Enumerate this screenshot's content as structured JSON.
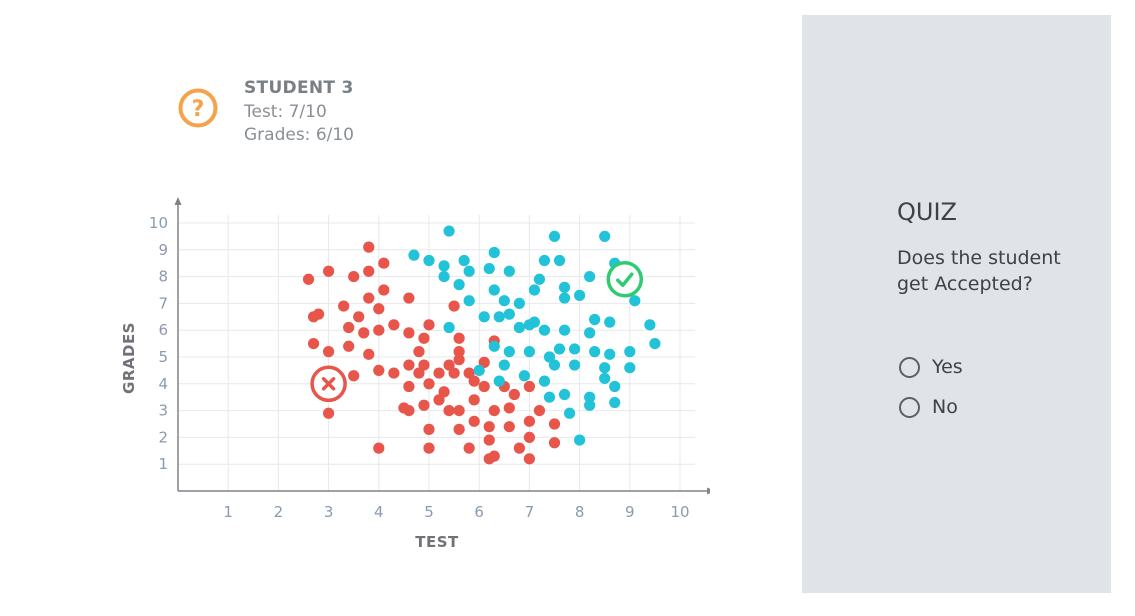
{
  "student": {
    "title": "STUDENT 3",
    "test": "Test: 7/10",
    "grades": "Grades: 6/10",
    "icon": "question-mark-icon"
  },
  "quiz": {
    "title": "QUIZ",
    "question": "Does the student get Accepted?",
    "options": [
      {
        "label": "Yes",
        "selected": false
      },
      {
        "label": "No",
        "selected": false
      }
    ]
  },
  "colors": {
    "rejected": "#e8554a",
    "accepted": "#22c3d9",
    "student_icon": "#f5a24a",
    "check": "#2ecc71",
    "panel_bg": "#e0e4e8"
  },
  "chart_data": {
    "type": "scatter",
    "xlabel": "TEST",
    "ylabel": "GRADES",
    "xlim": [
      0,
      10.3
    ],
    "ylim": [
      0,
      10.3
    ],
    "xticks": [
      1,
      2,
      3,
      4,
      5,
      6,
      7,
      8,
      9,
      10
    ],
    "yticks": [
      1,
      2,
      3,
      4,
      5,
      6,
      7,
      8,
      9,
      10
    ],
    "grid": true,
    "series": [
      {
        "color": "#e8554a",
        "points": [
          [
            3.8,
            9.1
          ],
          [
            2.6,
            7.9
          ],
          [
            3.0,
            8.2
          ],
          [
            3.5,
            8.0
          ],
          [
            3.8,
            8.2
          ],
          [
            4.1,
            8.5
          ],
          [
            4.1,
            7.5
          ],
          [
            3.8,
            7.2
          ],
          [
            4.6,
            7.2
          ],
          [
            2.8,
            6.6
          ],
          [
            2.7,
            6.5
          ],
          [
            3.3,
            6.9
          ],
          [
            3.6,
            6.5
          ],
          [
            4.0,
            6.8
          ],
          [
            3.4,
            6.1
          ],
          [
            3.7,
            5.9
          ],
          [
            4.0,
            6.0
          ],
          [
            4.3,
            6.2
          ],
          [
            4.6,
            5.9
          ],
          [
            5.0,
            6.2
          ],
          [
            5.5,
            6.9
          ],
          [
            4.9,
            5.7
          ],
          [
            5.6,
            5.7
          ],
          [
            2.7,
            5.5
          ],
          [
            3.0,
            5.2
          ],
          [
            3.4,
            5.4
          ],
          [
            3.8,
            5.1
          ],
          [
            4.0,
            4.5
          ],
          [
            4.3,
            4.4
          ],
          [
            4.6,
            4.7
          ],
          [
            4.8,
            5.2
          ],
          [
            4.9,
            4.7
          ],
          [
            5.2,
            4.4
          ],
          [
            5.4,
            4.7
          ],
          [
            5.6,
            4.9
          ],
          [
            5.6,
            5.2
          ],
          [
            5.8,
            4.4
          ],
          [
            6.1,
            4.8
          ],
          [
            6.3,
            5.6
          ],
          [
            5.9,
            4.1
          ],
          [
            6.1,
            3.9
          ],
          [
            6.5,
            3.9
          ],
          [
            7.0,
            3.9
          ],
          [
            5.5,
            4.4
          ],
          [
            5.3,
            3.7
          ],
          [
            4.8,
            4.4
          ],
          [
            5.0,
            4.0
          ],
          [
            4.6,
            3.9
          ],
          [
            4.5,
            3.1
          ],
          [
            4.6,
            3.0
          ],
          [
            4.9,
            3.2
          ],
          [
            5.2,
            3.4
          ],
          [
            5.4,
            3.0
          ],
          [
            5.6,
            3.0
          ],
          [
            5.9,
            3.4
          ],
          [
            6.3,
            3.0
          ],
          [
            6.6,
            3.1
          ],
          [
            6.7,
            3.6
          ],
          [
            7.2,
            3.0
          ],
          [
            5.9,
            2.6
          ],
          [
            6.2,
            2.4
          ],
          [
            6.6,
            2.4
          ],
          [
            7.0,
            2.6
          ],
          [
            7.5,
            2.5
          ],
          [
            7.0,
            2.0
          ],
          [
            7.5,
            1.8
          ],
          [
            5.0,
            2.3
          ],
          [
            5.6,
            2.3
          ],
          [
            6.2,
            1.9
          ],
          [
            5.8,
            1.6
          ],
          [
            6.3,
            1.3
          ],
          [
            6.8,
            1.6
          ],
          [
            7.0,
            1.2
          ],
          [
            6.2,
            1.2
          ],
          [
            5.0,
            1.6
          ],
          [
            4.0,
            1.6
          ],
          [
            3.0,
            2.9
          ],
          [
            3.5,
            4.3
          ],
          [
            2.8,
            4.2
          ]
        ]
      },
      {
        "color": "#22c3d9",
        "points": [
          [
            5.4,
            9.7
          ],
          [
            4.7,
            8.8
          ],
          [
            5.0,
            8.6
          ],
          [
            5.3,
            8.4
          ],
          [
            5.7,
            8.6
          ],
          [
            6.3,
            8.9
          ],
          [
            6.2,
            8.3
          ],
          [
            6.6,
            8.2
          ],
          [
            7.3,
            8.6
          ],
          [
            7.6,
            8.6
          ],
          [
            7.5,
            9.5
          ],
          [
            8.5,
            9.5
          ],
          [
            5.3,
            8.0
          ],
          [
            5.6,
            7.7
          ],
          [
            5.8,
            8.2
          ],
          [
            6.3,
            7.5
          ],
          [
            6.5,
            7.1
          ],
          [
            6.8,
            7.0
          ],
          [
            7.1,
            7.5
          ],
          [
            7.2,
            7.9
          ],
          [
            7.7,
            7.6
          ],
          [
            8.2,
            8.0
          ],
          [
            8.7,
            8.5
          ],
          [
            5.8,
            7.1
          ],
          [
            6.1,
            6.5
          ],
          [
            6.4,
            6.5
          ],
          [
            6.6,
            6.6
          ],
          [
            7.1,
            6.3
          ],
          [
            7.7,
            7.2
          ],
          [
            8.0,
            7.3
          ],
          [
            8.3,
            6.4
          ],
          [
            8.6,
            6.3
          ],
          [
            9.1,
            7.1
          ],
          [
            9.4,
            6.2
          ],
          [
            5.4,
            6.1
          ],
          [
            6.8,
            6.1
          ],
          [
            7.0,
            6.2
          ],
          [
            7.3,
            6.0
          ],
          [
            7.7,
            6.0
          ],
          [
            8.2,
            5.9
          ],
          [
            6.3,
            5.4
          ],
          [
            6.6,
            5.2
          ],
          [
            7.0,
            5.2
          ],
          [
            7.4,
            5.0
          ],
          [
            7.6,
            5.3
          ],
          [
            7.9,
            5.3
          ],
          [
            8.3,
            5.2
          ],
          [
            8.6,
            5.1
          ],
          [
            9.0,
            5.2
          ],
          [
            9.5,
            5.5
          ],
          [
            6.5,
            4.7
          ],
          [
            6.0,
            4.5
          ],
          [
            6.4,
            4.1
          ],
          [
            6.9,
            4.3
          ],
          [
            7.3,
            4.1
          ],
          [
            7.5,
            4.7
          ],
          [
            7.9,
            4.7
          ],
          [
            8.5,
            4.6
          ],
          [
            8.5,
            4.2
          ],
          [
            8.7,
            3.9
          ],
          [
            9.0,
            4.6
          ],
          [
            7.4,
            3.5
          ],
          [
            7.7,
            3.6
          ],
          [
            8.2,
            3.5
          ],
          [
            8.2,
            3.2
          ],
          [
            8.7,
            3.3
          ],
          [
            7.8,
            2.9
          ],
          [
            8.0,
            1.9
          ]
        ]
      }
    ],
    "markers": [
      {
        "name": "rejected-marker",
        "x": 3.0,
        "y": 4.0,
        "color": "#e8554a",
        "icon": "x-mark-icon"
      },
      {
        "name": "accepted-marker",
        "x": 8.9,
        "y": 7.9,
        "color": "#2ecc71",
        "icon": "check-mark-icon"
      }
    ]
  }
}
